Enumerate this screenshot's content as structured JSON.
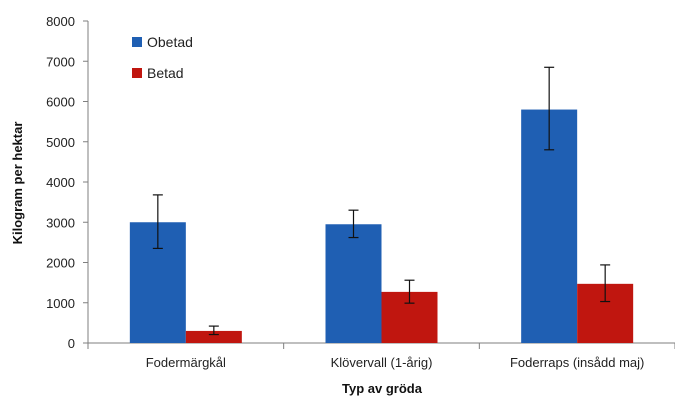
{
  "chart_data": {
    "type": "bar",
    "title": "",
    "xlabel": "Typ av gröda",
    "ylabel": "Kilogram per hektar",
    "ylim": [
      0,
      8000
    ],
    "yticks": [
      0,
      1000,
      2000,
      3000,
      4000,
      5000,
      6000,
      7000,
      8000
    ],
    "categories": [
      "Fodermärgkål",
      "Klövervall (1-årig)",
      "Foderraps (insådd maj)"
    ],
    "legend_position": "top-left",
    "grid": false,
    "series": [
      {
        "name": "Obetad",
        "color": "#1f5fb3",
        "values": [
          3000,
          2950,
          5800
        ],
        "error_low": [
          2350,
          2620,
          4800
        ],
        "error_high": [
          3680,
          3300,
          6850
        ]
      },
      {
        "name": "Betad",
        "color": "#c0160f",
        "values": [
          300,
          1270,
          1470
        ],
        "error_low": [
          210,
          990,
          1030
        ],
        "error_high": [
          420,
          1560,
          1940
        ]
      }
    ]
  }
}
